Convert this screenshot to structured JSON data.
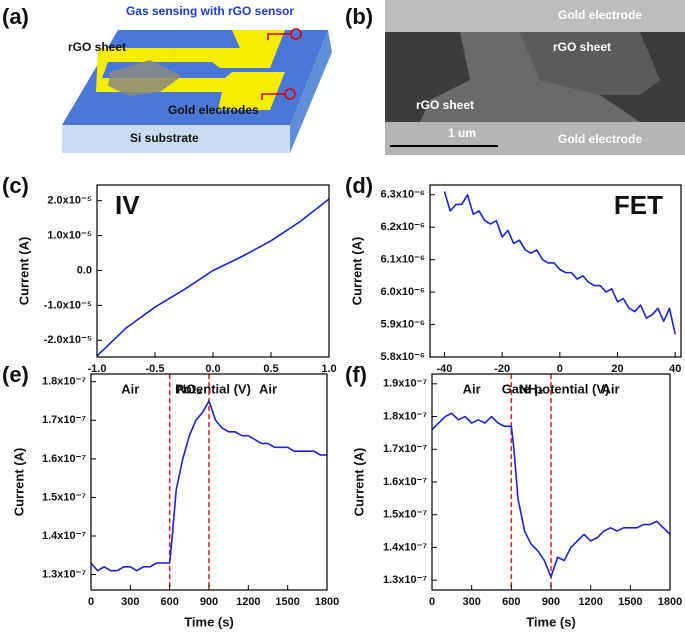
{
  "panel_a": {
    "label": "(a)",
    "title": "Gas sensing with rGO sensor",
    "rgo_label": "rGO sheet",
    "electrode_label": "Gold electrodes",
    "substrate_label": "Si substrate"
  },
  "panel_b": {
    "label": "(b)",
    "top_electrode": "Gold electrode",
    "bottom_electrode": "Gold electrode",
    "rgo_labels": [
      "rGO sheet",
      "rGO sheet"
    ],
    "scale_bar": "1 um"
  },
  "chart_data": [
    {
      "type": "line",
      "label": "(c)",
      "annotation": "IV",
      "x_label": "Potential (V)",
      "y_label": "Current (A)",
      "x": [
        -1,
        -0.75,
        -0.5,
        -0.25,
        0,
        0.25,
        0.5,
        0.75,
        1
      ],
      "series": [
        {
          "color": "#1c22d0",
          "values": [
            -2.45e-05,
            -1.65e-05,
            -1.05e-05,
            -5.5e-06,
            0,
            4e-06,
            8.5e-06,
            1.4e-05,
            2.05e-05
          ]
        }
      ],
      "xlim": [
        -1,
        1
      ],
      "ylim": [
        -2.48e-05,
        2.45e-05
      ],
      "xticks": [
        {
          "value": -1,
          "label": "-1.0"
        },
        -0.5,
        {
          "value": 0,
          "label": "0.0"
        },
        0.5,
        {
          "value": 1,
          "label": "1.0"
        }
      ],
      "yticks": [
        {
          "value": -2e-05,
          "label": "-2.0x10⁻⁵"
        },
        {
          "value": -1e-05,
          "label": "-1.0x10⁻⁵"
        },
        {
          "value": 0,
          "label": "0.0"
        },
        {
          "value": 1e-05,
          "label": "1.0x10⁻⁵"
        },
        {
          "value": 2e-05,
          "label": "2.0x10⁻⁵"
        }
      ]
    },
    {
      "type": "line",
      "label": "(d)",
      "annotation": "FET",
      "x_label": "Gate potential (V)",
      "y_label": "Current (A)",
      "x": [
        -40,
        -38,
        -36,
        -34,
        -32,
        -30,
        -28,
        -26,
        -24,
        -22,
        -20,
        -18,
        -16,
        -14,
        -12,
        -10,
        -8,
        -6,
        -4,
        -2,
        0,
        2,
        4,
        6,
        8,
        10,
        12,
        14,
        16,
        18,
        20,
        22,
        24,
        26,
        28,
        30,
        32,
        34,
        36,
        38,
        40
      ],
      "series": [
        {
          "color": "#1c22d0",
          "values": [
            6.31e-06,
            6.25e-06,
            6.27e-06,
            6.27e-06,
            6.3e-06,
            6.24e-06,
            6.25e-06,
            6.22e-06,
            6.21e-06,
            6.22e-06,
            6.17e-06,
            6.19e-06,
            6.15e-06,
            6.16e-06,
            6.13e-06,
            6.12e-06,
            6.13e-06,
            6.1e-06,
            6.09e-06,
            6.09e-06,
            6.07e-06,
            6.06e-06,
            6.06e-06,
            6.04e-06,
            6.05e-06,
            6.03e-06,
            6.02e-06,
            6.02e-06,
            6e-06,
            6.01e-06,
            5.97e-06,
            5.98e-06,
            5.95e-06,
            5.94e-06,
            5.96e-06,
            5.92e-06,
            5.93e-06,
            5.95e-06,
            5.91e-06,
            5.95e-06,
            5.87e-06
          ]
        }
      ],
      "xlim": [
        -45,
        42
      ],
      "ylim": [
        5.8e-06,
        6.33e-06
      ],
      "xticks": [
        -40,
        -20,
        0,
        20,
        40
      ],
      "yticks": [
        {
          "value": 5.8e-06,
          "label": "5.8x10⁻⁶"
        },
        {
          "value": 5.9e-06,
          "label": "5.9x10⁻⁶"
        },
        {
          "value": 6e-06,
          "label": "6.0x10⁻⁶"
        },
        {
          "value": 6.1e-06,
          "label": "6.1x10⁻⁶"
        },
        {
          "value": 6.2e-06,
          "label": "6.2x10⁻⁶"
        },
        {
          "value": 6.3e-06,
          "label": "6.3x10⁻⁶"
        }
      ]
    },
    {
      "type": "line",
      "label": "(e)",
      "x_label": "Time (s)",
      "y_label": "Current (A)",
      "x": [
        0,
        50,
        100,
        150,
        200,
        250,
        300,
        350,
        400,
        450,
        500,
        550,
        600,
        620,
        650,
        700,
        750,
        800,
        850,
        900,
        950,
        1000,
        1050,
        1100,
        1150,
        1200,
        1250,
        1300,
        1350,
        1400,
        1450,
        1500,
        1550,
        1600,
        1650,
        1700,
        1750,
        1800
      ],
      "series": [
        {
          "color": "#1c22d0",
          "values": [
            1.33e-07,
            1.31e-07,
            1.32e-07,
            1.31e-07,
            1.31e-07,
            1.32e-07,
            1.32e-07,
            1.31e-07,
            1.32e-07,
            1.32e-07,
            1.33e-07,
            1.33e-07,
            1.33e-07,
            1.4e-07,
            1.52e-07,
            1.6e-07,
            1.66e-07,
            1.7e-07,
            1.72e-07,
            1.75e-07,
            1.7e-07,
            1.68e-07,
            1.67e-07,
            1.67e-07,
            1.66e-07,
            1.66e-07,
            1.65e-07,
            1.64e-07,
            1.64e-07,
            1.63e-07,
            1.63e-07,
            1.63e-07,
            1.62e-07,
            1.62e-07,
            1.62e-07,
            1.62e-07,
            1.61e-07,
            1.61e-07
          ]
        }
      ],
      "events": [
        600,
        900
      ],
      "event_color": "#e02020",
      "regions": [
        "Air",
        "NO₂",
        "Air"
      ],
      "xlim": [
        0,
        1800
      ],
      "ylim": [
        1.26e-07,
        1.82e-07
      ],
      "xticks": [
        0,
        300,
        600,
        900,
        1200,
        1500,
        1800
      ],
      "yticks": [
        {
          "value": 1.3e-07,
          "label": "1.3x10⁻⁷"
        },
        {
          "value": 1.4e-07,
          "label": "1.4x10⁻⁷"
        },
        {
          "value": 1.5e-07,
          "label": "1.5x10⁻⁷"
        },
        {
          "value": 1.6e-07,
          "label": "1.6x10⁻⁷"
        },
        {
          "value": 1.7e-07,
          "label": "1.7x10⁻⁷"
        },
        {
          "value": 1.8e-07,
          "label": "1.8x10⁻⁷"
        }
      ]
    },
    {
      "type": "line",
      "label": "(f)",
      "x_label": "Time (s)",
      "y_label": "Current (A)",
      "x": [
        0,
        50,
        100,
        150,
        200,
        250,
        300,
        350,
        400,
        450,
        500,
        550,
        600,
        620,
        650,
        700,
        750,
        800,
        850,
        900,
        950,
        1000,
        1050,
        1100,
        1150,
        1200,
        1250,
        1300,
        1350,
        1400,
        1450,
        1500,
        1550,
        1600,
        1650,
        1700,
        1750,
        1800
      ],
      "series": [
        {
          "color": "#1c22d0",
          "values": [
            1.76e-07,
            1.78e-07,
            1.8e-07,
            1.81e-07,
            1.79e-07,
            1.8e-07,
            1.78e-07,
            1.79e-07,
            1.78e-07,
            1.8e-07,
            1.78e-07,
            1.77e-07,
            1.77e-07,
            1.7e-07,
            1.55e-07,
            1.45e-07,
            1.41e-07,
            1.39e-07,
            1.36e-07,
            1.31e-07,
            1.37e-07,
            1.36e-07,
            1.4e-07,
            1.42e-07,
            1.44e-07,
            1.42e-07,
            1.43e-07,
            1.45e-07,
            1.46e-07,
            1.45e-07,
            1.46e-07,
            1.46e-07,
            1.46e-07,
            1.47e-07,
            1.47e-07,
            1.48e-07,
            1.46e-07,
            1.44e-07
          ]
        }
      ],
      "events": [
        600,
        900
      ],
      "event_color": "#e02020",
      "regions": [
        "Air",
        "NH₃",
        "Air"
      ],
      "xlim": [
        0,
        1800
      ],
      "ylim": [
        1.27e-07,
        1.93e-07
      ],
      "xticks": [
        0,
        300,
        600,
        900,
        1200,
        1500,
        1800
      ],
      "yticks": [
        {
          "value": 1.3e-07,
          "label": "1.3x10⁻⁷"
        },
        {
          "value": 1.4e-07,
          "label": "1.4x10⁻⁷"
        },
        {
          "value": 1.5e-07,
          "label": "1.5x10⁻⁷"
        },
        {
          "value": 1.6e-07,
          "label": "1.6x10⁻⁷"
        },
        {
          "value": 1.7e-07,
          "label": "1.7x10⁻⁷"
        },
        {
          "value": 1.8e-07,
          "label": "1.8x10⁻⁷"
        },
        {
          "value": 1.9e-07,
          "label": "1.9x10⁻⁷"
        }
      ]
    }
  ]
}
